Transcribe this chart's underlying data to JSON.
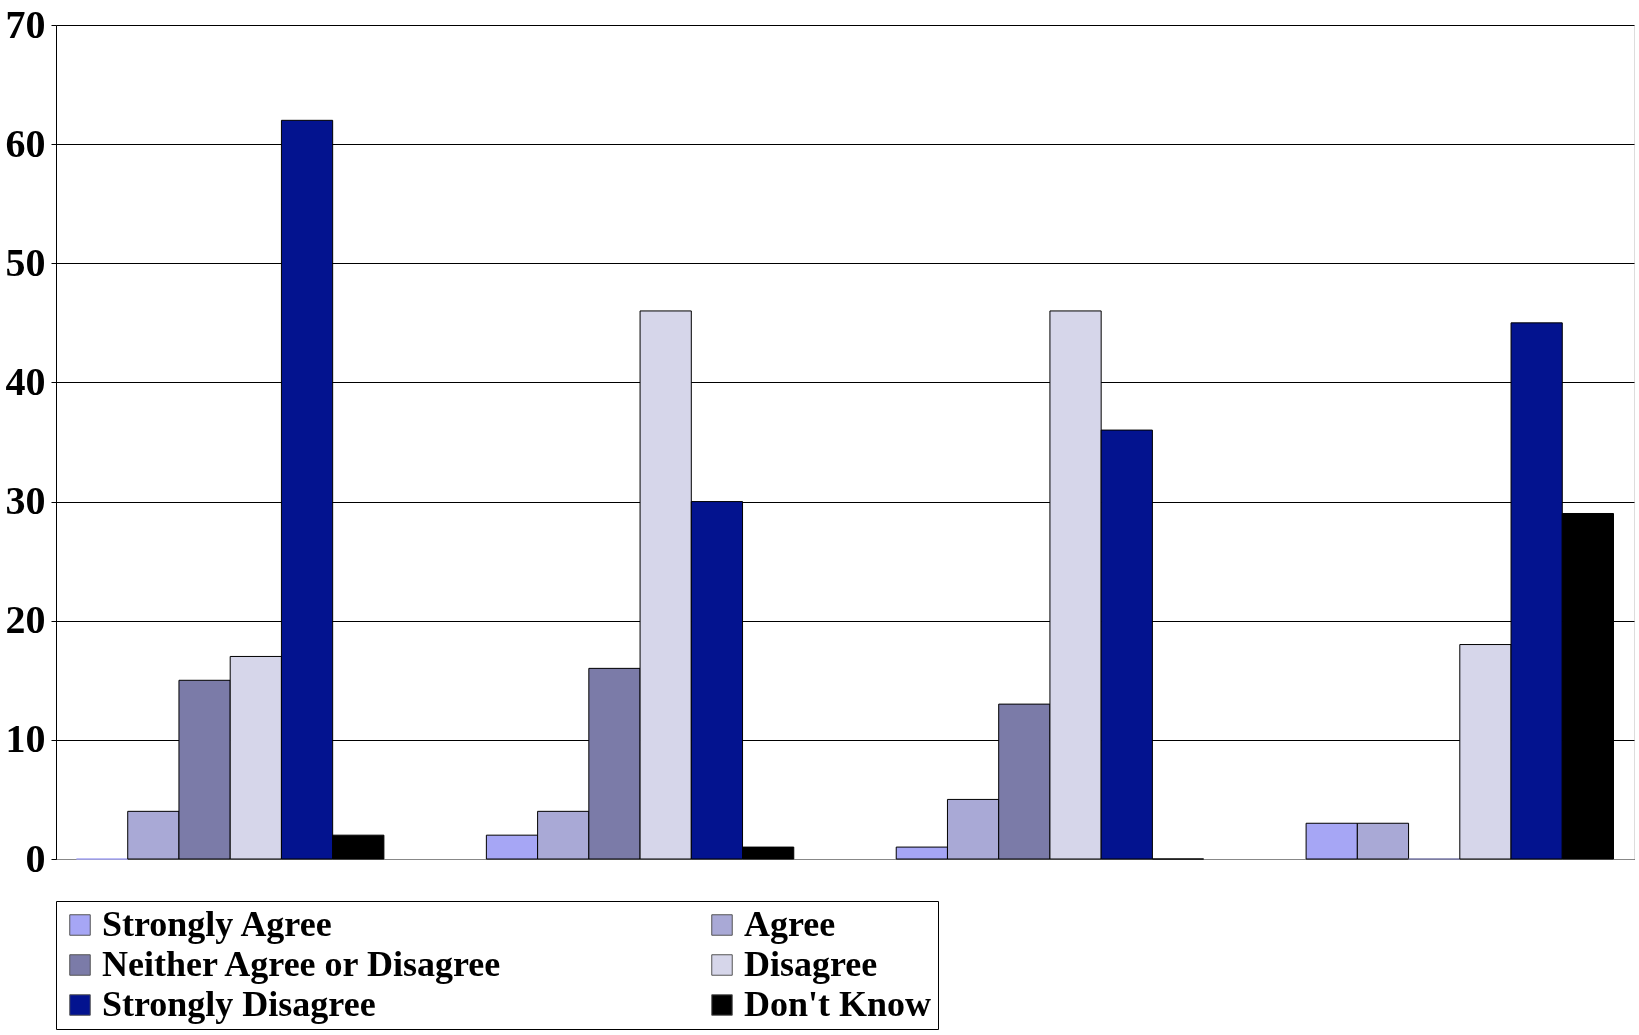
{
  "chart_data": {
    "type": "bar",
    "categories": [
      null,
      null,
      null,
      null
    ],
    "series": [
      {
        "name": "Strongly Agree",
        "color": "#a6a6f5",
        "values": [
          0,
          2,
          1,
          3
        ]
      },
      {
        "name": "Agree",
        "color": "#a9a9d6",
        "values": [
          4,
          4,
          5,
          3
        ]
      },
      {
        "name": "Neither Agree or Disagree",
        "color": "#7b7ba8",
        "values": [
          15,
          16,
          13,
          0
        ]
      },
      {
        "name": "Disagree",
        "color": "#d6d6ea",
        "values": [
          17,
          46,
          46,
          18
        ]
      },
      {
        "name": "Strongly Disagree",
        "color": "#03138f",
        "values": [
          62,
          30,
          36,
          45
        ]
      },
      {
        "name": "Don't Know",
        "color": "#000000",
        "values": [
          2,
          1,
          0,
          29
        ]
      }
    ],
    "ylim": [
      0,
      70
    ],
    "yticks": [
      0,
      10,
      20,
      30,
      40,
      50,
      60,
      70
    ],
    "grid": "y",
    "legend": "bottom"
  }
}
